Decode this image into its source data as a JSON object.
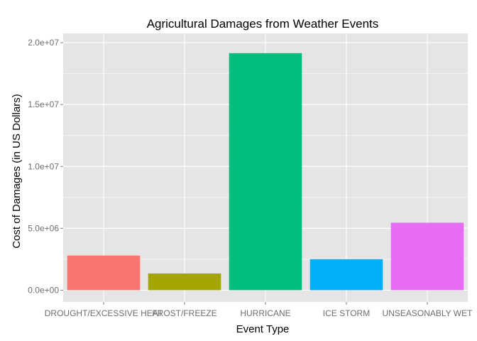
{
  "chart_data": {
    "type": "bar",
    "title": "Agricultural Damages from Weather Events",
    "xlabel": "Event Type",
    "ylabel": "Cost of Damages (in US Dollars)",
    "categories": [
      "DROUGHT/EXCESSIVE HEAT",
      "FROST/FREEZE",
      "HURRICANE",
      "ICE STORM",
      "UNSEASONABLY WET"
    ],
    "values": [
      2800000,
      1350000,
      19150000,
      2500000,
      5450000
    ],
    "colors": [
      "#F8766D",
      "#A3A500",
      "#00BF7D",
      "#00B0F6",
      "#E76BF3"
    ],
    "y_ticks": [
      0,
      5000000,
      10000000,
      15000000,
      20000000
    ],
    "y_tick_labels": [
      "0.0e+00",
      "5.0e+06",
      "1.0e+07",
      "1.5e+07",
      "2.0e+07"
    ],
    "ylim": [
      -950000,
      20750000
    ],
    "grid": true,
    "panel_background": "#E5E5E5",
    "grid_color": "#FFFFFF",
    "legend": "none"
  }
}
